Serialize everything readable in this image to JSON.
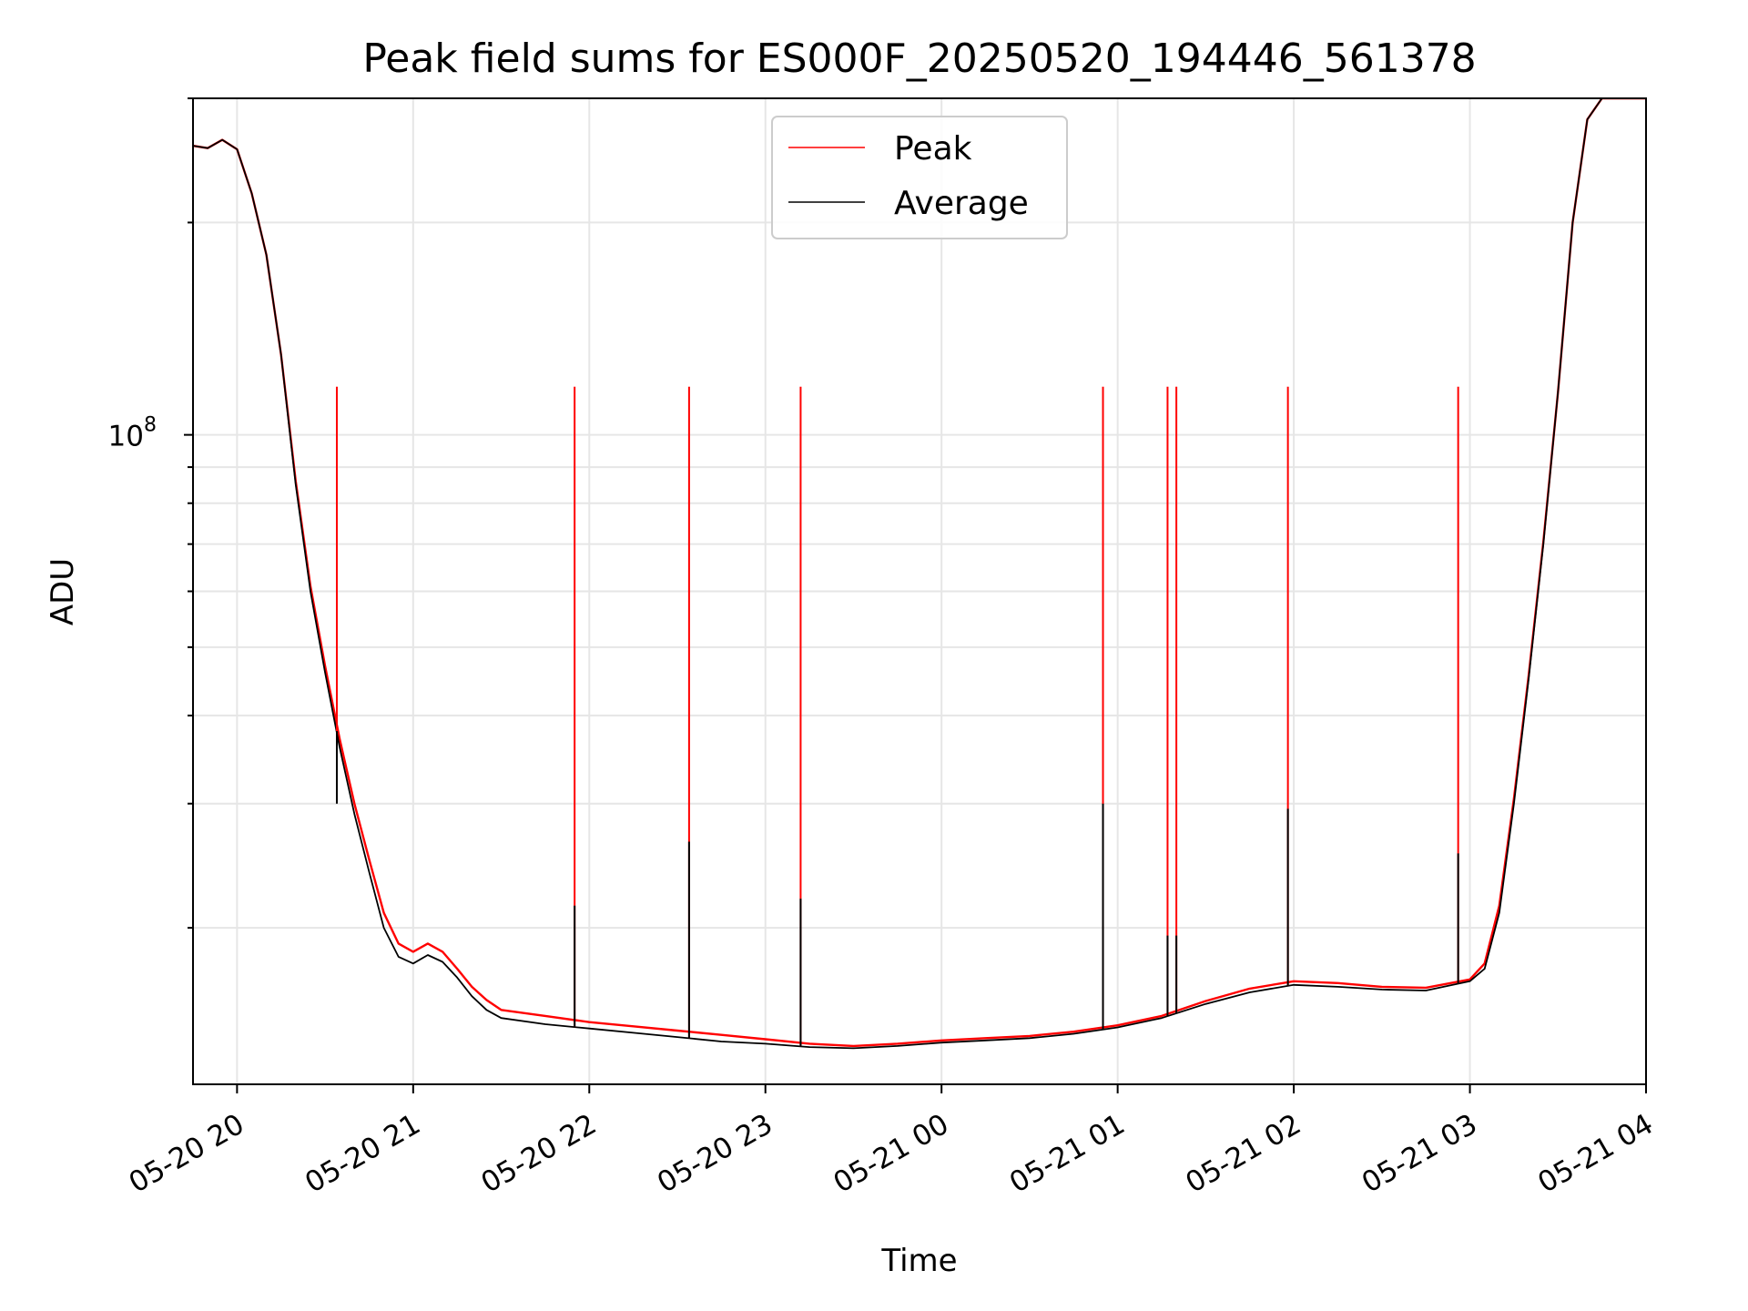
{
  "chart_data": {
    "type": "line",
    "title": "Peak field sums for ES000F_20250520_194446_561378",
    "xlabel": "Time",
    "ylabel": "ADU",
    "yscale": "log",
    "xlim": [
      "2025-05-20 19:45",
      "2025-05-21 04:00"
    ],
    "ylim": [
      12000000,
      300000000
    ],
    "x_ticks": [
      "05-20 20",
      "05-20 21",
      "05-20 22",
      "05-20 23",
      "05-21 00",
      "05-21 01",
      "05-21 02",
      "05-21 03",
      "05-21 04"
    ],
    "y_tick_major": [
      {
        "value": 100000000,
        "label_base": "10",
        "label_exp": "8"
      }
    ],
    "grid": true,
    "legend": {
      "position": "top-center",
      "entries": [
        "Peak",
        "Average"
      ]
    },
    "colors": {
      "Peak": "#ff0000",
      "Average": "#000000"
    },
    "series": [
      {
        "name": "Average",
        "points": [
          [
            "2025-05-20 19:45",
            257000000
          ],
          [
            "2025-05-20 19:50",
            255000000
          ],
          [
            "2025-05-20 19:55",
            262000000
          ],
          [
            "2025-05-20 20:00",
            254000000
          ],
          [
            "2025-05-20 20:05",
            220000000
          ],
          [
            "2025-05-20 20:10",
            180000000
          ],
          [
            "2025-05-20 20:15",
            130000000
          ],
          [
            "2025-05-20 20:20",
            85000000
          ],
          [
            "2025-05-20 20:25",
            60000000
          ],
          [
            "2025-05-20 20:30",
            46000000
          ],
          [
            "2025-05-20 20:35",
            36000000
          ],
          [
            "2025-05-20 20:40",
            29000000
          ],
          [
            "2025-05-20 20:45",
            24000000
          ],
          [
            "2025-05-20 20:50",
            20000000
          ],
          [
            "2025-05-20 20:55",
            18200000
          ],
          [
            "2025-05-20 21:00",
            17800000
          ],
          [
            "2025-05-20 21:05",
            18300000
          ],
          [
            "2025-05-20 21:10",
            17900000
          ],
          [
            "2025-05-20 21:15",
            17000000
          ],
          [
            "2025-05-20 21:20",
            16000000
          ],
          [
            "2025-05-20 21:25",
            15300000
          ],
          [
            "2025-05-20 21:30",
            14900000
          ],
          [
            "2025-05-20 21:45",
            14600000
          ],
          [
            "2025-05-20 22:00",
            14400000
          ],
          [
            "2025-05-20 22:15",
            14200000
          ],
          [
            "2025-05-20 22:30",
            14000000
          ],
          [
            "2025-05-20 22:45",
            13800000
          ],
          [
            "2025-05-20 23:00",
            13700000
          ],
          [
            "2025-05-20 23:15",
            13550000
          ],
          [
            "2025-05-20 23:30",
            13500000
          ],
          [
            "2025-05-20 23:45",
            13600000
          ],
          [
            "2025-05-21 00:00",
            13750000
          ],
          [
            "2025-05-21 00:15",
            13850000
          ],
          [
            "2025-05-21 00:30",
            13950000
          ],
          [
            "2025-05-21 00:45",
            14150000
          ],
          [
            "2025-05-21 01:00",
            14450000
          ],
          [
            "2025-05-21 01:15",
            14900000
          ],
          [
            "2025-05-21 01:30",
            15600000
          ],
          [
            "2025-05-21 01:45",
            16200000
          ],
          [
            "2025-05-21 02:00",
            16600000
          ],
          [
            "2025-05-21 02:15",
            16500000
          ],
          [
            "2025-05-21 02:30",
            16350000
          ],
          [
            "2025-05-21 02:45",
            16300000
          ],
          [
            "2025-05-21 03:00",
            16800000
          ],
          [
            "2025-05-21 03:05",
            17500000
          ],
          [
            "2025-05-21 03:10",
            21000000
          ],
          [
            "2025-05-21 03:15",
            30000000
          ],
          [
            "2025-05-21 03:20",
            45000000
          ],
          [
            "2025-05-21 03:25",
            70000000
          ],
          [
            "2025-05-21 03:30",
            115000000
          ],
          [
            "2025-05-21 03:35",
            200000000
          ],
          [
            "2025-05-21 03:40",
            280000000
          ],
          [
            "2025-05-21 03:45",
            300000000
          ],
          [
            "2025-05-21 04:00",
            300000000
          ]
        ]
      },
      {
        "name": "Peak",
        "points": [
          [
            "2025-05-20 19:45",
            257000000
          ],
          [
            "2025-05-20 19:50",
            255000000
          ],
          [
            "2025-05-20 19:55",
            262000000
          ],
          [
            "2025-05-20 20:00",
            254000000
          ],
          [
            "2025-05-20 20:05",
            220000000
          ],
          [
            "2025-05-20 20:10",
            180000000
          ],
          [
            "2025-05-20 20:15",
            130000000
          ],
          [
            "2025-05-20 20:20",
            86000000
          ],
          [
            "2025-05-20 20:25",
            61000000
          ],
          [
            "2025-05-20 20:30",
            47000000
          ],
          [
            "2025-05-20 20:35",
            37000000
          ],
          [
            "2025-05-20 20:40",
            30000000
          ],
          [
            "2025-05-20 20:45",
            25000000
          ],
          [
            "2025-05-20 20:50",
            21000000
          ],
          [
            "2025-05-20 20:55",
            19000000
          ],
          [
            "2025-05-20 21:00",
            18500000
          ],
          [
            "2025-05-20 21:05",
            19000000
          ],
          [
            "2025-05-20 21:10",
            18500000
          ],
          [
            "2025-05-20 21:15",
            17500000
          ],
          [
            "2025-05-20 21:20",
            16500000
          ],
          [
            "2025-05-20 21:25",
            15800000
          ],
          [
            "2025-05-20 21:30",
            15300000
          ],
          [
            "2025-05-20 21:45",
            15000000
          ],
          [
            "2025-05-20 22:00",
            14700000
          ],
          [
            "2025-05-20 22:15",
            14500000
          ],
          [
            "2025-05-20 22:30",
            14300000
          ],
          [
            "2025-05-20 22:45",
            14100000
          ],
          [
            "2025-05-20 23:00",
            13900000
          ],
          [
            "2025-05-20 23:15",
            13700000
          ],
          [
            "2025-05-20 23:30",
            13600000
          ],
          [
            "2025-05-20 23:45",
            13700000
          ],
          [
            "2025-05-21 00:00",
            13850000
          ],
          [
            "2025-05-21 00:15",
            13950000
          ],
          [
            "2025-05-21 00:30",
            14050000
          ],
          [
            "2025-05-21 00:45",
            14250000
          ],
          [
            "2025-05-21 01:00",
            14550000
          ],
          [
            "2025-05-21 01:15",
            15000000
          ],
          [
            "2025-05-21 01:30",
            15750000
          ],
          [
            "2025-05-21 01:45",
            16400000
          ],
          [
            "2025-05-21 02:00",
            16800000
          ],
          [
            "2025-05-21 02:15",
            16700000
          ],
          [
            "2025-05-21 02:30",
            16500000
          ],
          [
            "2025-05-21 02:45",
            16450000
          ],
          [
            "2025-05-21 03:00",
            16900000
          ],
          [
            "2025-05-21 03:05",
            17800000
          ],
          [
            "2025-05-21 03:10",
            21500000
          ],
          [
            "2025-05-21 03:15",
            30500000
          ],
          [
            "2025-05-21 03:20",
            45500000
          ],
          [
            "2025-05-21 03:25",
            70500000
          ],
          [
            "2025-05-21 03:30",
            115000000
          ],
          [
            "2025-05-21 03:35",
            200000000
          ],
          [
            "2025-05-21 03:40",
            280000000
          ],
          [
            "2025-05-21 03:45",
            300000000
          ],
          [
            "2025-05-21 04:00",
            300000000
          ]
        ]
      }
    ],
    "spikes": [
      {
        "time": "2025-05-20 20:34",
        "peak": 117000000,
        "average": 30000000
      },
      {
        "time": "2025-05-20 21:55",
        "peak": 117000000,
        "average": 21500000
      },
      {
        "time": "2025-05-20 22:34",
        "peak": 117000000,
        "average": 26500000
      },
      {
        "time": "2025-05-20 23:12",
        "peak": 117000000,
        "average": 22000000
      },
      {
        "time": "2025-05-21 00:55",
        "peak": 117000000,
        "average": 30000000
      },
      {
        "time": "2025-05-21 01:17",
        "peak": 117000000,
        "average": 19500000
      },
      {
        "time": "2025-05-21 01:20",
        "peak": 117000000,
        "average": 19500000
      },
      {
        "time": "2025-05-21 01:58",
        "peak": 117000000,
        "average": 29500000
      },
      {
        "time": "2025-05-21 02:56",
        "peak": 117000000,
        "average": 25500000
      }
    ]
  }
}
